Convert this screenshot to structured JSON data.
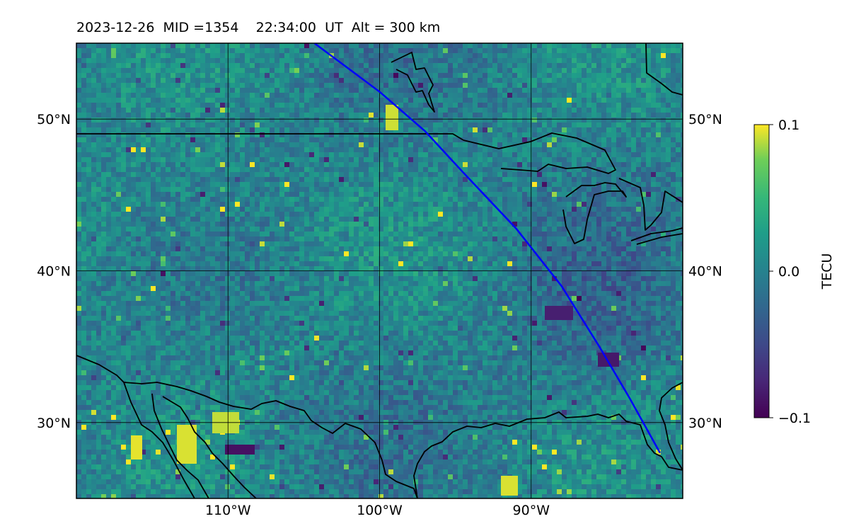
{
  "header": {
    "date": "2023-12-26",
    "mid": "MID =1354",
    "time": "22:34:00",
    "ut": "UT",
    "alt": "Alt = 300 km"
  },
  "map": {
    "lon_range": [
      -120,
      -80
    ],
    "lat_range": [
      25,
      55
    ],
    "lat_ticks": [
      {
        "value": 30,
        "label": "30°N"
      },
      {
        "value": 40,
        "label": "40°N"
      },
      {
        "value": 50,
        "label": "50°N"
      }
    ],
    "lon_ticks": [
      {
        "value": -110,
        "label": "110°W"
      },
      {
        "value": -100,
        "label": "100°W"
      },
      {
        "value": -90,
        "label": "90°W"
      }
    ],
    "grid": true,
    "colormap": "viridis",
    "track_color": "#0000ff",
    "coastline_color": "#000000"
  },
  "colorbar": {
    "label": "TECU",
    "min": -0.1,
    "max": 0.1,
    "ticks": [
      {
        "value": 0.1,
        "label": "0.1"
      },
      {
        "value": 0.0,
        "label": "0.0"
      },
      {
        "value": -0.1,
        "label": "−0.1"
      }
    ]
  }
}
